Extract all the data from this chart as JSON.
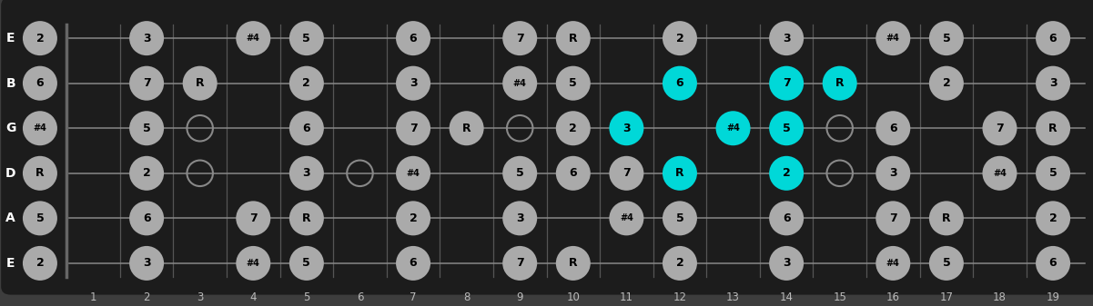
{
  "strings": [
    "E",
    "B",
    "G",
    "D",
    "A",
    "E"
  ],
  "fret_numbers": [
    1,
    2,
    3,
    4,
    5,
    6,
    7,
    8,
    9,
    10,
    11,
    12,
    13,
    14,
    15,
    16,
    17,
    18,
    19
  ],
  "bg_color": "#3d3d3d",
  "fretboard_color": "#1c1c1c",
  "dot_color_normal": "#aaaaaa",
  "dot_color_highlight": "#00d8d8",
  "open_circle_color": "#888888",
  "notes": [
    {
      "string": 0,
      "fret": 0,
      "label": "2",
      "type": "normal"
    },
    {
      "string": 0,
      "fret": 2,
      "label": "3",
      "type": "normal"
    },
    {
      "string": 0,
      "fret": 4,
      "label": "#4",
      "type": "normal"
    },
    {
      "string": 0,
      "fret": 5,
      "label": "5",
      "type": "normal"
    },
    {
      "string": 0,
      "fret": 7,
      "label": "6",
      "type": "normal"
    },
    {
      "string": 0,
      "fret": 9,
      "label": "7",
      "type": "normal"
    },
    {
      "string": 0,
      "fret": 10,
      "label": "R",
      "type": "normal"
    },
    {
      "string": 0,
      "fret": 12,
      "label": "2",
      "type": "normal"
    },
    {
      "string": 0,
      "fret": 14,
      "label": "3",
      "type": "normal"
    },
    {
      "string": 0,
      "fret": 16,
      "label": "#4",
      "type": "normal"
    },
    {
      "string": 0,
      "fret": 17,
      "label": "5",
      "type": "normal"
    },
    {
      "string": 0,
      "fret": 19,
      "label": "6",
      "type": "normal"
    },
    {
      "string": 1,
      "fret": 0,
      "label": "6",
      "type": "normal"
    },
    {
      "string": 1,
      "fret": 2,
      "label": "7",
      "type": "normal"
    },
    {
      "string": 1,
      "fret": 3,
      "label": "R",
      "type": "normal"
    },
    {
      "string": 1,
      "fret": 5,
      "label": "2",
      "type": "normal"
    },
    {
      "string": 1,
      "fret": 7,
      "label": "3",
      "type": "normal"
    },
    {
      "string": 1,
      "fret": 9,
      "label": "#4",
      "type": "normal"
    },
    {
      "string": 1,
      "fret": 10,
      "label": "5",
      "type": "normal"
    },
    {
      "string": 1,
      "fret": 12,
      "label": "6",
      "type": "highlight"
    },
    {
      "string": 1,
      "fret": 14,
      "label": "7",
      "type": "highlight"
    },
    {
      "string": 1,
      "fret": 15,
      "label": "R",
      "type": "highlight"
    },
    {
      "string": 1,
      "fret": 17,
      "label": "2",
      "type": "normal"
    },
    {
      "string": 1,
      "fret": 19,
      "label": "3",
      "type": "normal"
    },
    {
      "string": 2,
      "fret": 0,
      "label": "#4",
      "type": "normal"
    },
    {
      "string": 2,
      "fret": 2,
      "label": "5",
      "type": "normal"
    },
    {
      "string": 2,
      "fret": 3,
      "label": "",
      "type": "open"
    },
    {
      "string": 2,
      "fret": 5,
      "label": "6",
      "type": "normal"
    },
    {
      "string": 2,
      "fret": 7,
      "label": "7",
      "type": "normal"
    },
    {
      "string": 2,
      "fret": 8,
      "label": "R",
      "type": "normal"
    },
    {
      "string": 2,
      "fret": 9,
      "label": "",
      "type": "open"
    },
    {
      "string": 2,
      "fret": 10,
      "label": "2",
      "type": "normal"
    },
    {
      "string": 2,
      "fret": 11,
      "label": "3",
      "type": "highlight"
    },
    {
      "string": 2,
      "fret": 13,
      "label": "#4",
      "type": "highlight"
    },
    {
      "string": 2,
      "fret": 14,
      "label": "5",
      "type": "highlight"
    },
    {
      "string": 2,
      "fret": 15,
      "label": "",
      "type": "open"
    },
    {
      "string": 2,
      "fret": 16,
      "label": "6",
      "type": "normal"
    },
    {
      "string": 2,
      "fret": 18,
      "label": "7",
      "type": "normal"
    },
    {
      "string": 2,
      "fret": 19,
      "label": "R",
      "type": "normal"
    },
    {
      "string": 3,
      "fret": 0,
      "label": "R",
      "type": "normal"
    },
    {
      "string": 3,
      "fret": 2,
      "label": "2",
      "type": "normal"
    },
    {
      "string": 3,
      "fret": 3,
      "label": "",
      "type": "open"
    },
    {
      "string": 3,
      "fret": 5,
      "label": "3",
      "type": "normal"
    },
    {
      "string": 3,
      "fret": 6,
      "label": "",
      "type": "open"
    },
    {
      "string": 3,
      "fret": 7,
      "label": "#4",
      "type": "normal"
    },
    {
      "string": 3,
      "fret": 9,
      "label": "5",
      "type": "normal"
    },
    {
      "string": 3,
      "fret": 10,
      "label": "6",
      "type": "normal"
    },
    {
      "string": 3,
      "fret": 11,
      "label": "7",
      "type": "normal"
    },
    {
      "string": 3,
      "fret": 12,
      "label": "R",
      "type": "highlight"
    },
    {
      "string": 3,
      "fret": 14,
      "label": "2",
      "type": "highlight"
    },
    {
      "string": 3,
      "fret": 15,
      "label": "",
      "type": "open"
    },
    {
      "string": 3,
      "fret": 16,
      "label": "3",
      "type": "normal"
    },
    {
      "string": 3,
      "fret": 18,
      "label": "#4",
      "type": "normal"
    },
    {
      "string": 3,
      "fret": 19,
      "label": "5",
      "type": "normal"
    },
    {
      "string": 4,
      "fret": 0,
      "label": "5",
      "type": "normal"
    },
    {
      "string": 4,
      "fret": 2,
      "label": "6",
      "type": "normal"
    },
    {
      "string": 4,
      "fret": 4,
      "label": "7",
      "type": "normal"
    },
    {
      "string": 4,
      "fret": 5,
      "label": "R",
      "type": "normal"
    },
    {
      "string": 4,
      "fret": 7,
      "label": "2",
      "type": "normal"
    },
    {
      "string": 4,
      "fret": 9,
      "label": "3",
      "type": "normal"
    },
    {
      "string": 4,
      "fret": 11,
      "label": "#4",
      "type": "normal"
    },
    {
      "string": 4,
      "fret": 12,
      "label": "5",
      "type": "normal"
    },
    {
      "string": 4,
      "fret": 14,
      "label": "6",
      "type": "normal"
    },
    {
      "string": 4,
      "fret": 16,
      "label": "7",
      "type": "normal"
    },
    {
      "string": 4,
      "fret": 17,
      "label": "R",
      "type": "normal"
    },
    {
      "string": 4,
      "fret": 19,
      "label": "2",
      "type": "normal"
    },
    {
      "string": 5,
      "fret": 0,
      "label": "2",
      "type": "normal"
    },
    {
      "string": 5,
      "fret": 2,
      "label": "3",
      "type": "normal"
    },
    {
      "string": 5,
      "fret": 4,
      "label": "#4",
      "type": "normal"
    },
    {
      "string": 5,
      "fret": 5,
      "label": "5",
      "type": "normal"
    },
    {
      "string": 5,
      "fret": 7,
      "label": "6",
      "type": "normal"
    },
    {
      "string": 5,
      "fret": 9,
      "label": "7",
      "type": "normal"
    },
    {
      "string": 5,
      "fret": 10,
      "label": "R",
      "type": "normal"
    },
    {
      "string": 5,
      "fret": 12,
      "label": "2",
      "type": "normal"
    },
    {
      "string": 5,
      "fret": 14,
      "label": "3",
      "type": "normal"
    },
    {
      "string": 5,
      "fret": 16,
      "label": "#4",
      "type": "normal"
    },
    {
      "string": 5,
      "fret": 17,
      "label": "5",
      "type": "normal"
    },
    {
      "string": 5,
      "fret": 19,
      "label": "6",
      "type": "normal"
    }
  ]
}
